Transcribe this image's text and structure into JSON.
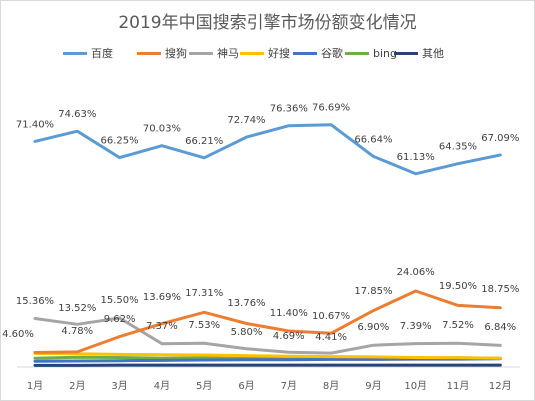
{
  "chart_data": {
    "type": "line",
    "title": "2019年中国搜索引擎市场份额变化情况",
    "categories": [
      "1月",
      "2月",
      "3月",
      "4月",
      "5月",
      "6月",
      "7月",
      "8月",
      "9月",
      "10月",
      "11月",
      "12月"
    ],
    "ylim": [
      0,
      100
    ],
    "grid": false,
    "legend_position": "top",
    "series": [
      {
        "name": "百度",
        "color": "#5b9bd5",
        "labeled": true,
        "values": [
          71.4,
          74.63,
          66.25,
          70.03,
          66.21,
          72.74,
          76.36,
          76.69,
          66.64,
          61.13,
          64.35,
          67.09
        ],
        "labels": [
          "71.40%",
          "74.63%",
          "66.25%",
          "70.03%",
          "66.21%",
          "72.74%",
          "76.36%",
          "76.69%",
          "66.64%",
          "61.13%",
          "64.35%",
          "67.09%"
        ]
      },
      {
        "name": "搜狗",
        "color": "#ed7d31",
        "labeled": true,
        "values": [
          4.6,
          4.78,
          9.62,
          13.69,
          17.31,
          13.76,
          11.4,
          10.67,
          17.85,
          24.06,
          19.5,
          18.75
        ],
        "labels": [
          "4.60%",
          "4.78%",
          "9.62%",
          "13.69%",
          "17.31%",
          "13.76%",
          "11.40%",
          "10.67%",
          "17.85%",
          "24.06%",
          "19.50%",
          "18.75%"
        ]
      },
      {
        "name": "神马",
        "color": "#a5a5a5",
        "labeled": true,
        "values": [
          15.36,
          13.52,
          15.5,
          7.37,
          7.53,
          5.8,
          4.69,
          4.41,
          6.9,
          7.39,
          7.52,
          6.84
        ],
        "labels": [
          "15.36%",
          "13.52%",
          "15.50%",
          "7.37%",
          "7.53%",
          "5.80%",
          "4.69%",
          "4.41%",
          "6.90%",
          "7.39%",
          "7.52%",
          "6.84%"
        ]
      },
      {
        "name": "好搜",
        "color": "#ffc000",
        "labeled": false,
        "values": [
          4.3,
          4.2,
          4.0,
          3.9,
          3.8,
          3.6,
          3.4,
          3.3,
          3.2,
          3.0,
          2.9,
          2.8
        ]
      },
      {
        "name": "谷歌",
        "color": "#4472c4",
        "labeled": false,
        "values": [
          1.8,
          1.9,
          2.0,
          2.1,
          2.2,
          2.3,
          2.3,
          2.4,
          2.4,
          2.5,
          2.5,
          2.6
        ]
      },
      {
        "name": "bing",
        "color": "#70ad47",
        "labeled": false,
        "values": [
          2.8,
          3.1,
          3.0,
          2.8,
          2.9,
          2.7,
          2.6,
          2.5,
          2.7,
          2.8,
          2.9,
          2.8
        ]
      },
      {
        "name": "其他",
        "color": "#264478",
        "labeled": false,
        "values": [
          0.5,
          0.5,
          0.6,
          0.6,
          0.6,
          0.6,
          0.6,
          0.6,
          0.6,
          0.6,
          0.6,
          0.6
        ]
      }
    ]
  }
}
